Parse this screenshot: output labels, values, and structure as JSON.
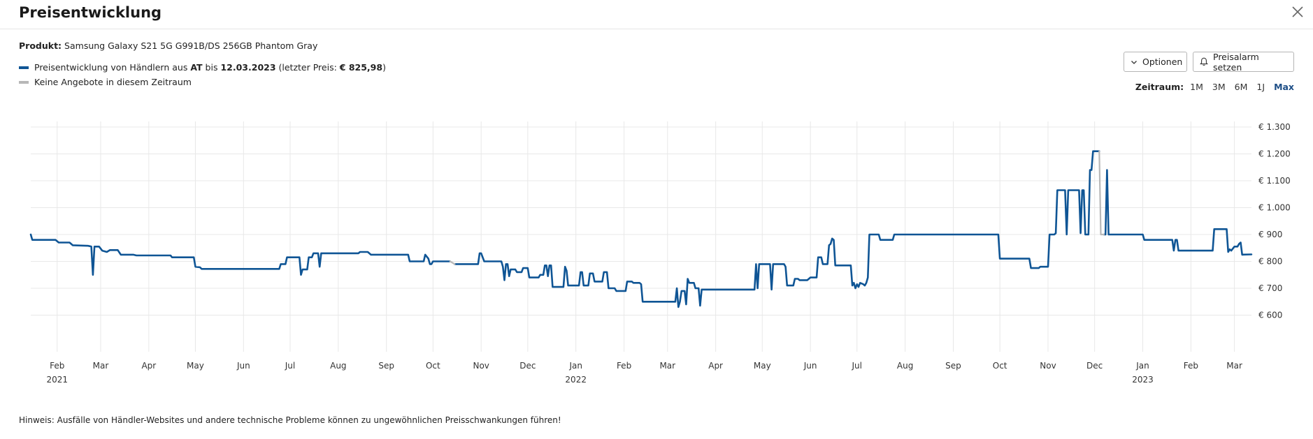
{
  "dialog": {
    "title": "Preisentwicklung",
    "close_icon": "close-icon"
  },
  "product": {
    "label": "Produkt:",
    "name": "Samsung Galaxy S21 5G G991B/DS 256GB Phantom Gray"
  },
  "legend": {
    "line1_prefix": "Preisentwicklung von Händlern aus",
    "line1_country": "AT",
    "line1_mid": "bis",
    "line1_date": "12.03.2023",
    "line1_last_label": "(letzter Preis:",
    "line1_last_price": "€ 825,98",
    "line1_suffix": ")",
    "line2": "Keine Angebote in diesem Zeitraum",
    "color_prices": "#0f5595",
    "color_no_offers": "#b8b8b8"
  },
  "buttons": {
    "options": "Optionen",
    "alarm": "Preisalarm setzen"
  },
  "zeitraum": {
    "label": "Zeitraum:",
    "options": [
      "1M",
      "3M",
      "6M",
      "1J",
      "Max"
    ],
    "active": "Max"
  },
  "hint": "Hinweis: Ausfälle von Händler-Websites und andere technische Probleme können zu ungewöhnlichen Preisschwankungen führen!",
  "chart_data": {
    "type": "line",
    "title": "",
    "xlabel": "",
    "ylabel": "",
    "ylim": [
      500,
      1300
    ],
    "xlim": [
      "2021-01-15",
      "2023-03-12"
    ],
    "y_ticks": [
      600,
      700,
      800,
      900,
      1000,
      1100,
      1200,
      1300
    ],
    "y_tick_labels": [
      "€ 600",
      "€ 700",
      "€ 800",
      "€ 900",
      "€ 1.000",
      "€ 1.100",
      "€ 1.200",
      "€ 1.300"
    ],
    "x_ticks": [
      {
        "date": "2021-02-01",
        "label": "Feb",
        "year": "2021"
      },
      {
        "date": "2021-03-01",
        "label": "Mar"
      },
      {
        "date": "2021-04-01",
        "label": "Apr"
      },
      {
        "date": "2021-05-01",
        "label": "May"
      },
      {
        "date": "2021-06-01",
        "label": "Jun"
      },
      {
        "date": "2021-07-01",
        "label": "Jul"
      },
      {
        "date": "2021-08-01",
        "label": "Aug"
      },
      {
        "date": "2021-09-01",
        "label": "Sep"
      },
      {
        "date": "2021-10-01",
        "label": "Oct"
      },
      {
        "date": "2021-11-01",
        "label": "Nov"
      },
      {
        "date": "2021-12-01",
        "label": "Dec"
      },
      {
        "date": "2022-01-01",
        "label": "Jan",
        "year": "2022"
      },
      {
        "date": "2022-02-01",
        "label": "Feb"
      },
      {
        "date": "2022-03-01",
        "label": "Mar"
      },
      {
        "date": "2022-04-01",
        "label": "Apr"
      },
      {
        "date": "2022-05-01",
        "label": "May"
      },
      {
        "date": "2022-06-01",
        "label": "Jun"
      },
      {
        "date": "2022-07-01",
        "label": "Jul"
      },
      {
        "date": "2022-08-01",
        "label": "Aug"
      },
      {
        "date": "2022-09-01",
        "label": "Sep"
      },
      {
        "date": "2022-10-01",
        "label": "Oct"
      },
      {
        "date": "2022-11-01",
        "label": "Nov"
      },
      {
        "date": "2022-12-01",
        "label": "Dec"
      },
      {
        "date": "2023-01-01",
        "label": "Jan",
        "year": "2023"
      },
      {
        "date": "2023-02-01",
        "label": "Feb"
      },
      {
        "date": "2023-03-01",
        "label": "Mar"
      }
    ],
    "grid": true,
    "series": [
      {
        "name": "Preisentwicklung von Händlern aus AT",
        "color": "#0f5595",
        "points": [
          [
            "2021-01-15",
            900
          ],
          [
            "2021-01-16",
            880
          ],
          [
            "2021-01-31",
            880
          ],
          [
            "2021-02-02",
            870
          ],
          [
            "2021-02-09",
            870
          ],
          [
            "2021-02-11",
            860
          ],
          [
            "2021-02-21",
            858
          ],
          [
            "2021-02-23",
            855
          ],
          [
            "2021-02-24",
            750
          ],
          [
            "2021-02-25",
            855
          ],
          [
            "2021-02-28",
            855
          ],
          [
            "2021-03-02",
            840
          ],
          [
            "2021-03-05",
            835
          ],
          [
            "2021-03-07",
            842
          ],
          [
            "2021-03-12",
            842
          ],
          [
            "2021-03-14",
            825
          ],
          [
            "2021-03-22",
            825
          ],
          [
            "2021-03-24",
            822
          ],
          [
            "2021-04-15",
            822
          ],
          [
            "2021-04-16",
            815
          ],
          [
            "2021-04-30",
            815
          ],
          [
            "2021-05-01",
            780
          ],
          [
            "2021-05-04",
            778
          ],
          [
            "2021-05-05",
            772
          ],
          [
            "2021-06-24",
            772
          ],
          [
            "2021-06-25",
            790
          ],
          [
            "2021-06-28",
            790
          ],
          [
            "2021-06-29",
            815
          ],
          [
            "2021-07-07",
            815
          ],
          [
            "2021-07-08",
            750
          ],
          [
            "2021-07-09",
            770
          ],
          [
            "2021-07-12",
            770
          ],
          [
            "2021-07-13",
            815
          ],
          [
            "2021-07-15",
            815
          ],
          [
            "2021-07-16",
            830
          ],
          [
            "2021-07-19",
            830
          ],
          [
            "2021-07-20",
            780
          ],
          [
            "2021-07-21",
            830
          ],
          [
            "2021-08-14",
            830
          ],
          [
            "2021-08-15",
            835
          ],
          [
            "2021-08-20",
            835
          ],
          [
            "2021-08-22",
            825
          ],
          [
            "2021-09-15",
            825
          ],
          [
            "2021-09-16",
            800
          ],
          [
            "2021-09-25",
            800
          ],
          [
            "2021-09-26",
            825
          ],
          [
            "2021-09-28",
            810
          ],
          [
            "2021-09-29",
            790
          ],
          [
            "2021-09-30",
            790
          ],
          [
            "2021-10-01",
            800
          ],
          [
            "2021-10-12",
            800
          ]
        ]
      },
      {
        "name": "",
        "color": "#0f5595",
        "points": [
          [
            "2021-10-15",
            790
          ],
          [
            "2021-10-30",
            790
          ],
          [
            "2021-10-31",
            830
          ],
          [
            "2021-11-01",
            830
          ],
          [
            "2021-11-03",
            800
          ],
          [
            "2021-11-14",
            800
          ],
          [
            "2021-11-15",
            780
          ],
          [
            "2021-11-16",
            730
          ],
          [
            "2021-11-17",
            790
          ],
          [
            "2021-11-18",
            790
          ],
          [
            "2021-11-19",
            745
          ],
          [
            "2021-11-20",
            770
          ],
          [
            "2021-11-23",
            770
          ],
          [
            "2021-11-24",
            760
          ],
          [
            "2021-11-27",
            760
          ],
          [
            "2021-11-28",
            775
          ],
          [
            "2021-12-01",
            775
          ],
          [
            "2021-12-02",
            740
          ],
          [
            "2021-12-08",
            740
          ],
          [
            "2021-12-09",
            750
          ],
          [
            "2021-12-11",
            750
          ],
          [
            "2021-12-12",
            785
          ],
          [
            "2021-12-13",
            785
          ],
          [
            "2021-12-14",
            745
          ],
          [
            "2021-12-15",
            785
          ],
          [
            "2021-12-16",
            785
          ],
          [
            "2021-12-17",
            705
          ],
          [
            "2021-12-24",
            705
          ],
          [
            "2021-12-25",
            780
          ],
          [
            "2021-12-26",
            765
          ],
          [
            "2021-12-27",
            710
          ],
          [
            "2022-01-03",
            710
          ],
          [
            "2022-01-04",
            760
          ],
          [
            "2022-01-05",
            760
          ],
          [
            "2022-01-06",
            710
          ],
          [
            "2022-01-09",
            710
          ],
          [
            "2022-01-10",
            755
          ],
          [
            "2022-01-12",
            755
          ],
          [
            "2022-01-13",
            725
          ],
          [
            "2022-01-18",
            725
          ],
          [
            "2022-01-19",
            760
          ],
          [
            "2022-01-21",
            760
          ],
          [
            "2022-01-22",
            700
          ],
          [
            "2022-01-26",
            700
          ],
          [
            "2022-01-27",
            690
          ],
          [
            "2022-02-02",
            690
          ],
          [
            "2022-02-03",
            725
          ],
          [
            "2022-02-06",
            725
          ],
          [
            "2022-02-07",
            720
          ],
          [
            "2022-02-11",
            720
          ],
          [
            "2022-02-12",
            715
          ],
          [
            "2022-02-13",
            650
          ],
          [
            "2022-03-06",
            650
          ],
          [
            "2022-03-07",
            700
          ],
          [
            "2022-03-08",
            630
          ],
          [
            "2022-03-09",
            650
          ],
          [
            "2022-03-10",
            690
          ],
          [
            "2022-03-12",
            690
          ],
          [
            "2022-03-13",
            640
          ],
          [
            "2022-03-14",
            735
          ],
          [
            "2022-03-15",
            720
          ],
          [
            "2022-03-18",
            720
          ],
          [
            "2022-03-19",
            700
          ],
          [
            "2022-03-21",
            700
          ],
          [
            "2022-03-22",
            635
          ],
          [
            "2022-03-23",
            695
          ],
          [
            "2022-04-26",
            695
          ],
          [
            "2022-04-27",
            790
          ],
          [
            "2022-04-28",
            700
          ],
          [
            "2022-04-29",
            790
          ],
          [
            "2022-05-06",
            790
          ],
          [
            "2022-05-07",
            695
          ],
          [
            "2022-05-08",
            790
          ],
          [
            "2022-05-15",
            790
          ],
          [
            "2022-05-16",
            780
          ],
          [
            "2022-05-17",
            710
          ],
          [
            "2022-05-21",
            710
          ],
          [
            "2022-05-22",
            735
          ],
          [
            "2022-05-24",
            735
          ],
          [
            "2022-05-25",
            730
          ],
          [
            "2022-05-30",
            730
          ],
          [
            "2022-06-01",
            740
          ],
          [
            "2022-06-05",
            740
          ],
          [
            "2022-06-06",
            815
          ],
          [
            "2022-06-08",
            815
          ],
          [
            "2022-06-09",
            790
          ],
          [
            "2022-06-12",
            790
          ],
          [
            "2022-06-13",
            860
          ],
          [
            "2022-06-14",
            865
          ],
          [
            "2022-06-15",
            885
          ],
          [
            "2022-06-16",
            880
          ],
          [
            "2022-06-17",
            785
          ],
          [
            "2022-06-27",
            785
          ],
          [
            "2022-06-28",
            710
          ],
          [
            "2022-06-29",
            720
          ],
          [
            "2022-06-30",
            700
          ],
          [
            "2022-07-01",
            715
          ],
          [
            "2022-07-02",
            705
          ],
          [
            "2022-07-03",
            720
          ],
          [
            "2022-07-05",
            715
          ],
          [
            "2022-07-06",
            710
          ],
          [
            "2022-07-07",
            720
          ],
          [
            "2022-07-08",
            740
          ],
          [
            "2022-07-09",
            900
          ],
          [
            "2022-07-15",
            900
          ],
          [
            "2022-07-16",
            880
          ],
          [
            "2022-07-24",
            880
          ],
          [
            "2022-07-25",
            900
          ],
          [
            "2022-09-30",
            900
          ],
          [
            "2022-10-01",
            810
          ],
          [
            "2022-10-20",
            810
          ],
          [
            "2022-10-21",
            775
          ],
          [
            "2022-10-26",
            775
          ],
          [
            "2022-10-27",
            780
          ],
          [
            "2022-10-30",
            780
          ],
          [
            "2022-11-01",
            780
          ],
          [
            "2022-11-02",
            900
          ],
          [
            "2022-11-05",
            900
          ],
          [
            "2022-11-06",
            905
          ],
          [
            "2022-11-07",
            1065
          ],
          [
            "2022-11-12",
            1065
          ],
          [
            "2022-11-13",
            900
          ],
          [
            "2022-11-14",
            1065
          ],
          [
            "2022-11-21",
            1065
          ],
          [
            "2022-11-22",
            905
          ],
          [
            "2022-11-23",
            1065
          ],
          [
            "2022-11-24",
            1065
          ],
          [
            "2022-11-25",
            900
          ],
          [
            "2022-11-27",
            900
          ],
          [
            "2022-11-28",
            1140
          ],
          [
            "2022-11-29",
            1140
          ],
          [
            "2022-11-30",
            1210
          ],
          [
            "2022-12-04",
            1210
          ]
        ]
      },
      {
        "name": "",
        "color": "#0f5595",
        "points": [
          [
            "2022-12-07",
            900
          ],
          [
            "2022-12-08",
            900
          ],
          [
            "2022-12-09",
            1140
          ],
          [
            "2022-12-10",
            900
          ],
          [
            "2023-01-01",
            900
          ],
          [
            "2023-01-02",
            880
          ],
          [
            "2023-01-20",
            880
          ],
          [
            "2023-01-21",
            840
          ],
          [
            "2023-01-22",
            880
          ],
          [
            "2023-01-23",
            880
          ],
          [
            "2023-01-24",
            840
          ],
          [
            "2023-02-15",
            840
          ],
          [
            "2023-02-16",
            920
          ],
          [
            "2023-02-24",
            920
          ],
          [
            "2023-02-25",
            835
          ],
          [
            "2023-02-26",
            845
          ],
          [
            "2023-02-27",
            840
          ],
          [
            "2023-03-01",
            855
          ],
          [
            "2023-03-03",
            855
          ],
          [
            "2023-03-04",
            865
          ],
          [
            "2023-03-05",
            870
          ],
          [
            "2023-03-06",
            825
          ],
          [
            "2023-03-12",
            826
          ]
        ]
      },
      {
        "name": "Keine Angebote in diesem Zeitraum",
        "color": "#b8b8b8",
        "points": [
          [
            "2022-12-04",
            1210
          ],
          [
            "2022-12-05",
            900
          ],
          [
            "2022-12-06",
            900
          ],
          [
            "2022-12-07",
            900
          ]
        ]
      },
      {
        "name": "",
        "color": "#b8b8b8",
        "points": [
          [
            "2021-10-12",
            800
          ],
          [
            "2021-10-15",
            790
          ]
        ]
      }
    ]
  }
}
